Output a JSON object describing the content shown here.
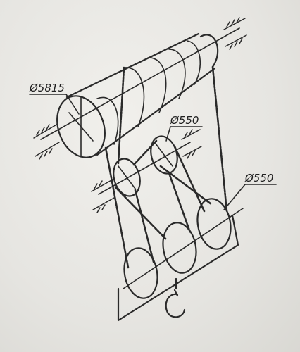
{
  "labels": {
    "drum_diameter": "Ø5815",
    "pulley_upper_diameter": "Ø550",
    "pulley_right_diameter": "Ø550"
  },
  "colors": {
    "paper": "#e9e8e4",
    "ink": "#2a2a2a"
  },
  "icons": {
    "hook": "hook-icon",
    "fixed_support": "fixed-support-hatch-icon"
  }
}
